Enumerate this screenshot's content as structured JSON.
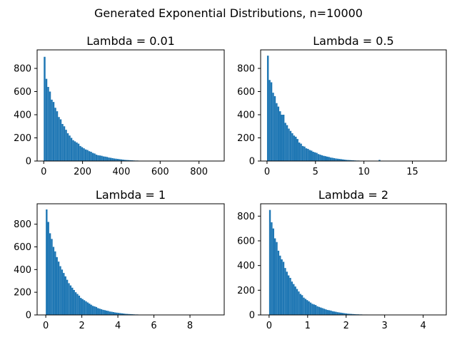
{
  "figure": {
    "title": "Generated Exponential Distributions, n=10000"
  },
  "chart_data": [
    {
      "type": "bar",
      "title": "Lambda = 0.01",
      "color": "#1f77b4",
      "xlim": [
        -34,
        930
      ],
      "ylim": [
        0,
        960
      ],
      "xticks": [
        0,
        200,
        400,
        600,
        800
      ],
      "yticks": [
        0,
        200,
        400,
        600,
        800
      ],
      "bin_start": 0,
      "bin_width": 9.2,
      "values": [
        900,
        710,
        640,
        600,
        530,
        510,
        460,
        430,
        380,
        360,
        320,
        300,
        270,
        240,
        220,
        200,
        180,
        170,
        160,
        150,
        130,
        120,
        110,
        100,
        95,
        85,
        80,
        70,
        65,
        55,
        50,
        48,
        45,
        40,
        38,
        35,
        30,
        28,
        25,
        22,
        20,
        18,
        16,
        14,
        12,
        10,
        9,
        8,
        7,
        6,
        5,
        4,
        4,
        3,
        3,
        2,
        2,
        2,
        1,
        1,
        1,
        1,
        1,
        1,
        1,
        1,
        0,
        0,
        1,
        0,
        0,
        1,
        0,
        0,
        1,
        0,
        0,
        0,
        0,
        0,
        0,
        0,
        0,
        0,
        0,
        0,
        0,
        0,
        0,
        0,
        0,
        0,
        0,
        0,
        0,
        0,
        0,
        1,
        0,
        1
      ]
    },
    {
      "type": "bar",
      "title": "Lambda = 0.5",
      "color": "#1f77b4",
      "xlim": [
        -0.66,
        18.5
      ],
      "ylim": [
        0,
        960
      ],
      "xticks": [
        0,
        5,
        10,
        15
      ],
      "yticks": [
        0,
        200,
        400,
        600,
        800
      ],
      "bin_start": 0,
      "bin_width": 0.18,
      "values": [
        910,
        700,
        680,
        590,
        560,
        500,
        470,
        430,
        400,
        400,
        330,
        310,
        280,
        260,
        240,
        220,
        210,
        190,
        160,
        150,
        130,
        125,
        110,
        105,
        95,
        90,
        80,
        75,
        70,
        60,
        55,
        50,
        45,
        42,
        38,
        35,
        30,
        28,
        25,
        22,
        20,
        18,
        16,
        14,
        12,
        10,
        9,
        8,
        7,
        6,
        5,
        4,
        4,
        3,
        3,
        2,
        2,
        2,
        1,
        1,
        1,
        1,
        1,
        1,
        10,
        1,
        1,
        1,
        1,
        1,
        0,
        0,
        0,
        0,
        0,
        0,
        0,
        0,
        0,
        0,
        0,
        0,
        0,
        0,
        0,
        0,
        0,
        0,
        0,
        0,
        0,
        0,
        0,
        0,
        0,
        0,
        0,
        0,
        0,
        1
      ]
    },
    {
      "type": "bar",
      "title": "Lambda = 1",
      "color": "#1f77b4",
      "xlim": [
        -0.48,
        9.9
      ],
      "ylim": [
        0,
        980
      ],
      "xticks": [
        0,
        2,
        4,
        6,
        8
      ],
      "yticks": [
        0,
        200,
        400,
        600,
        800
      ],
      "bin_start": 0,
      "bin_width": 0.095,
      "values": [
        930,
        820,
        720,
        670,
        600,
        560,
        510,
        470,
        430,
        400,
        370,
        340,
        310,
        280,
        260,
        240,
        220,
        200,
        185,
        170,
        150,
        140,
        130,
        120,
        110,
        100,
        90,
        80,
        75,
        70,
        60,
        55,
        50,
        45,
        42,
        38,
        35,
        30,
        28,
        25,
        22,
        20,
        18,
        16,
        14,
        12,
        10,
        9,
        8,
        7,
        6,
        5,
        4,
        4,
        3,
        3,
        2,
        2,
        2,
        1,
        1,
        1,
        1,
        1,
        1,
        1,
        1,
        0,
        0,
        0,
        0,
        0,
        0,
        0,
        0,
        0,
        0,
        0,
        0,
        0,
        0,
        0,
        0,
        0,
        0,
        0,
        0,
        0,
        0,
        0,
        0,
        0,
        0,
        0,
        0,
        0,
        0,
        0,
        0,
        1
      ]
    },
    {
      "type": "bar",
      "title": "Lambda = 2",
      "color": "#1f77b4",
      "xlim": [
        -0.22,
        4.6
      ],
      "ylim": [
        0,
        900
      ],
      "xticks": [
        0,
        1,
        2,
        3,
        4
      ],
      "yticks": [
        0,
        200,
        400,
        600,
        800
      ],
      "bin_start": 0,
      "bin_width": 0.044,
      "values": [
        850,
        750,
        700,
        620,
        590,
        520,
        480,
        450,
        430,
        380,
        350,
        320,
        300,
        270,
        250,
        230,
        210,
        190,
        170,
        160,
        140,
        130,
        120,
        110,
        100,
        90,
        85,
        80,
        70,
        65,
        60,
        55,
        50,
        45,
        40,
        38,
        35,
        30,
        28,
        25,
        22,
        20,
        18,
        16,
        14,
        12,
        10,
        9,
        8,
        7,
        6,
        5,
        5,
        4,
        4,
        3,
        3,
        3,
        2,
        2,
        2,
        2,
        1,
        1,
        1,
        1,
        1,
        1,
        1,
        1,
        1,
        1,
        1,
        1,
        1,
        1,
        1,
        1,
        1,
        1,
        1,
        1,
        1,
        1,
        1,
        1,
        1,
        1,
        1,
        1,
        1,
        1,
        1,
        1,
        1,
        1,
        1,
        1,
        1,
        1
      ]
    }
  ]
}
